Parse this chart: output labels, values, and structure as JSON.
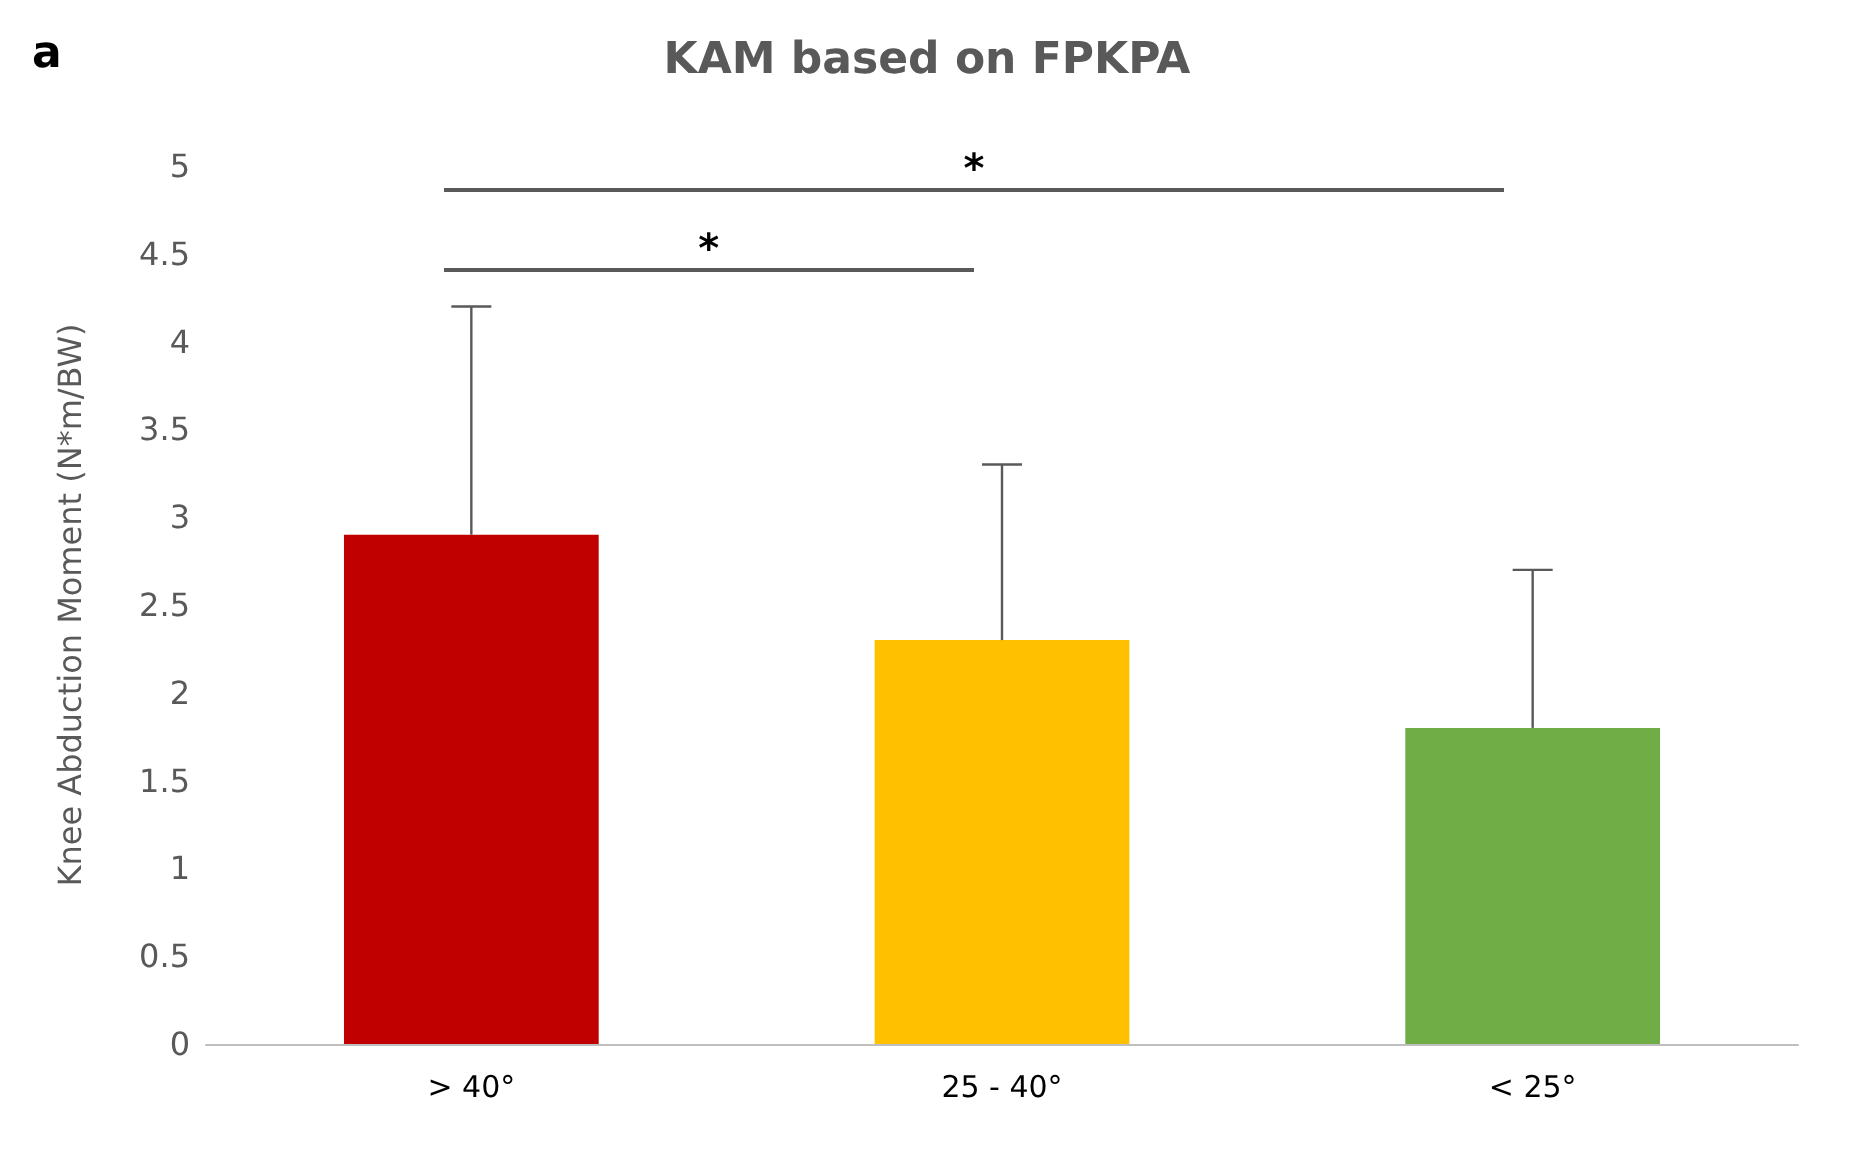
{
  "chart_data": {
    "type": "bar",
    "title": "KAM based on FPKPA",
    "ylabel": "Knee Abduction Moment (N*m/BW)",
    "categories": [
      "> 40°",
      "25 - 40°",
      "< 25°"
    ],
    "values": [
      2.9,
      2.3,
      1.8
    ],
    "colors": [
      "#c00000",
      "#ffc000",
      "#70ad47"
    ],
    "errors": [
      [
        2.9,
        4.2
      ],
      [
        2.3,
        3.3
      ],
      [
        1.8,
        2.7
      ]
    ],
    "ylim": [
      0,
      5
    ],
    "yticks": [
      0,
      0.5,
      1,
      1.5,
      2,
      2.5,
      3,
      3.5,
      4,
      4.5,
      5
    ],
    "grid": false,
    "annotations": [
      "a",
      "*",
      "*"
    ]
  }
}
